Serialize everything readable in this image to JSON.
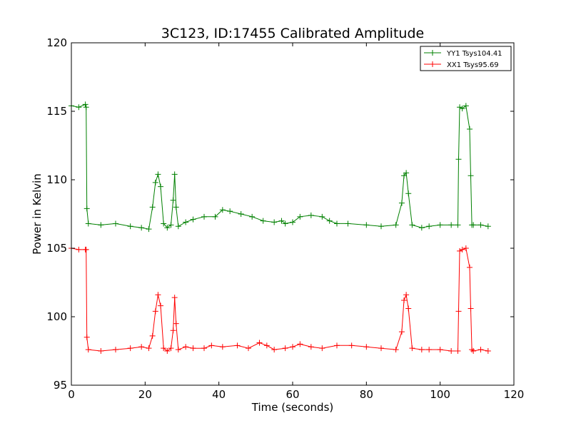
{
  "chart_data": {
    "type": "line",
    "title": "3C123, ID:17455 Calibrated Amplitude",
    "xlabel": "Time (seconds)",
    "ylabel": "Power in Kelvin",
    "xlim": [
      0,
      120
    ],
    "ylim": [
      95,
      120
    ],
    "xticks": [
      "0",
      "20",
      "40",
      "60",
      "80",
      "100",
      "120"
    ],
    "yticks": [
      "95",
      "100",
      "105",
      "110",
      "115",
      "120"
    ],
    "grid": false,
    "legend_position": "top-right",
    "marker": "+",
    "series": [
      {
        "name": "YY1 Tsys104.41",
        "color": "#008000",
        "x": [
          0,
          2,
          3.8,
          4,
          4.2,
          4.6,
          8,
          12,
          16,
          19,
          21,
          22,
          22.8,
          23.5,
          24.2,
          25,
          26,
          27,
          27.6,
          28,
          28.4,
          29,
          31,
          33,
          36,
          39,
          41,
          43,
          46,
          49,
          52,
          55,
          57,
          58,
          60,
          62,
          65,
          68,
          70,
          72,
          75,
          80,
          84,
          88,
          89.6,
          90.2,
          90.8,
          91.4,
          92.4,
          95,
          97,
          100,
          103,
          104.8,
          105,
          105.3,
          106,
          107,
          108,
          108.3,
          108.6,
          109,
          111,
          113
        ],
        "values": [
          115.4,
          115.3,
          115.5,
          115.3,
          107.9,
          106.8,
          106.7,
          106.8,
          106.6,
          106.5,
          106.4,
          108.0,
          109.8,
          110.4,
          109.5,
          106.8,
          106.5,
          106.7,
          108.5,
          110.4,
          108.0,
          106.6,
          106.9,
          107.1,
          107.3,
          107.3,
          107.8,
          107.7,
          107.5,
          107.3,
          107.0,
          106.9,
          107.0,
          106.8,
          106.9,
          107.3,
          107.4,
          107.3,
          107.0,
          106.8,
          106.8,
          106.7,
          106.6,
          106.7,
          108.3,
          110.3,
          110.5,
          109.0,
          106.7,
          106.5,
          106.6,
          106.7,
          106.7,
          106.7,
          111.5,
          115.3,
          115.2,
          115.4,
          113.7,
          110.3,
          106.7,
          106.7,
          106.7,
          106.6
        ]
      },
      {
        "name": "XX1 Tsys95.69",
        "color": "#ff0000",
        "x": [
          0,
          2,
          3.8,
          4,
          4.2,
          4.6,
          8,
          12,
          16,
          19,
          21,
          22,
          22.8,
          23.5,
          24.2,
          25,
          26,
          27,
          27.6,
          28,
          28.4,
          29,
          31,
          33,
          36,
          38,
          41,
          45,
          48,
          51,
          53,
          55,
          58,
          60,
          62,
          65,
          68,
          72,
          76,
          80,
          84,
          88,
          89.6,
          90.2,
          90.8,
          91.4,
          92.4,
          95,
          97,
          100,
          103,
          104.8,
          105,
          105.3,
          106,
          107,
          108,
          108.3,
          108.6,
          109,
          111,
          113
        ],
        "values": [
          105.0,
          104.9,
          104.9,
          104.9,
          98.5,
          97.6,
          97.5,
          97.6,
          97.7,
          97.8,
          97.7,
          98.6,
          100.4,
          101.6,
          100.8,
          97.7,
          97.5,
          97.7,
          99.0,
          101.4,
          99.5,
          97.6,
          97.8,
          97.7,
          97.7,
          97.9,
          97.8,
          97.9,
          97.7,
          98.1,
          97.9,
          97.6,
          97.7,
          97.8,
          98.0,
          97.8,
          97.7,
          97.9,
          97.9,
          97.8,
          97.7,
          97.6,
          98.9,
          101.2,
          101.6,
          100.6,
          97.7,
          97.6,
          97.6,
          97.6,
          97.5,
          97.5,
          100.4,
          104.8,
          104.9,
          105.0,
          103.6,
          100.6,
          97.6,
          97.5,
          97.6,
          97.5
        ]
      }
    ]
  }
}
